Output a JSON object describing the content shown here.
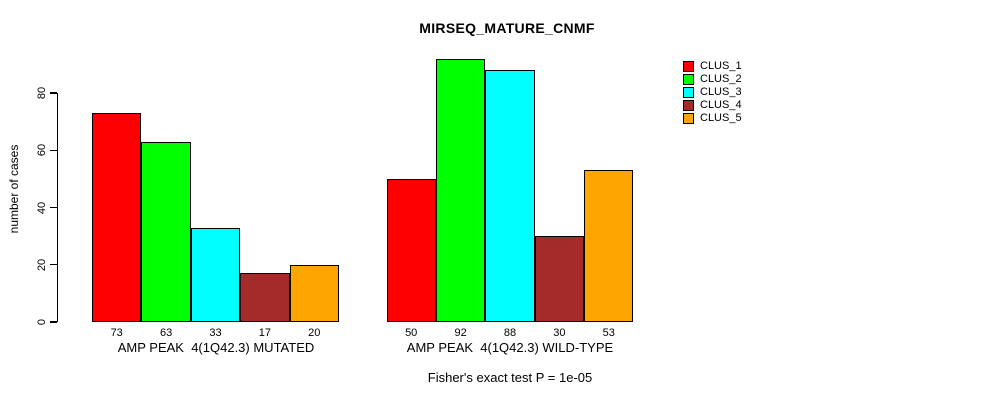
{
  "chart_data": {
    "type": "bar",
    "title": "MIRSEQ_MATURE_CNMF",
    "ylabel": "number of cases",
    "xlabel": "",
    "ylim": [
      0,
      95
    ],
    "yticks": [
      0,
      20,
      40,
      60,
      80
    ],
    "grid": false,
    "legend_position": "right",
    "categories": [
      "AMP PEAK  4(1Q42.3) MUTATED",
      "AMP PEAK  4(1Q42.3) WILD-TYPE"
    ],
    "groups": [
      {
        "label": "AMP PEAK  4(1Q42.3) MUTATED",
        "values": [
          73,
          63,
          33,
          17,
          20
        ]
      },
      {
        "label": "AMP PEAK  4(1Q42.3) WILD-TYPE",
        "values": [
          50,
          92,
          88,
          30,
          53
        ]
      }
    ],
    "series": [
      {
        "name": "CLUS_1",
        "color": "#FF0000",
        "values": [
          73,
          50
        ]
      },
      {
        "name": "CLUS_2",
        "color": "#00FF00",
        "values": [
          63,
          92
        ]
      },
      {
        "name": "CLUS_3",
        "color": "#00FFFF",
        "values": [
          33,
          88
        ]
      },
      {
        "name": "CLUS_4",
        "color": "#A52A2A",
        "values": [
          17,
          30
        ]
      },
      {
        "name": "CLUS_5",
        "color": "#FFA500",
        "values": [
          20,
          53
        ]
      }
    ],
    "annotation": "Fisher's exact test P = 1e-05"
  },
  "colors": {
    "axis": "#000000",
    "text": "#000000",
    "background": "#FFFFFF"
  }
}
